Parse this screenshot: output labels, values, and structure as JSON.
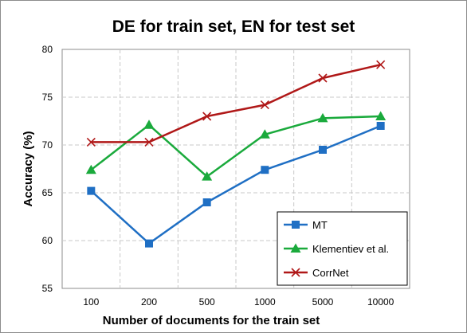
{
  "chart_data": {
    "type": "line",
    "title": "DE for train set, EN for test set",
    "xlabel": "Number of documents for the train set",
    "ylabel": "Accuracy (%)",
    "categories": [
      "100",
      "200",
      "500",
      "1000",
      "5000",
      "10000"
    ],
    "ylim": [
      55,
      80
    ],
    "yticks": [
      55,
      60,
      65,
      70,
      75,
      80
    ],
    "grid": true,
    "legend_position": "bottom-right",
    "series": [
      {
        "name": "MT",
        "values": [
          65.2,
          59.7,
          64.0,
          67.4,
          69.5,
          72.0
        ],
        "color": "#1f6fc4",
        "marker": "square"
      },
      {
        "name": "Klementiev et al.",
        "values": [
          67.4,
          72.1,
          66.7,
          71.1,
          72.8,
          73.0
        ],
        "color": "#1aaa3c",
        "marker": "triangle"
      },
      {
        "name": "CorrNet",
        "values": [
          70.3,
          70.3,
          73.0,
          74.2,
          77.0,
          78.4
        ],
        "color": "#b01818",
        "marker": "x"
      }
    ]
  }
}
